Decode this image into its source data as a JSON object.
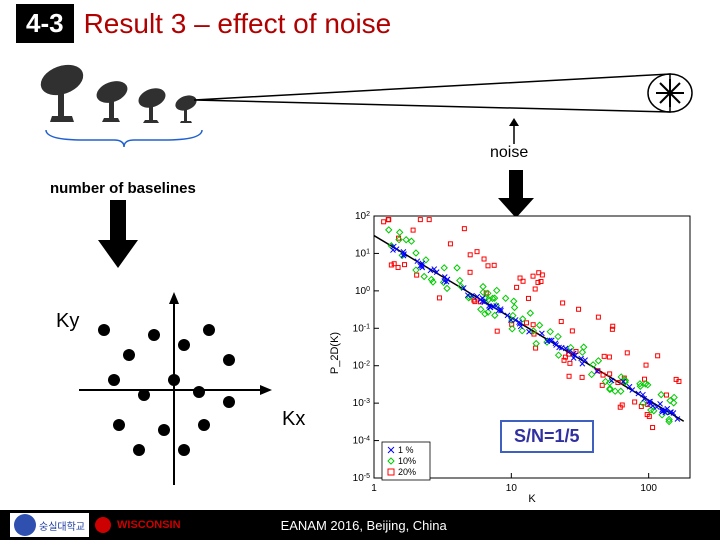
{
  "header": {
    "badge": "4-3",
    "title": "Result 3 – effect of noise"
  },
  "labels": {
    "noise": "noise",
    "baselines": "number of baselines",
    "ky": "Ky",
    "kx": "Kx",
    "sn": "S/N=1/5"
  },
  "chart": {
    "type": "scatter-log",
    "ylabel": "P_2D(K)",
    "xlabel": "K",
    "xlim": [
      1,
      200
    ],
    "ylim": [
      1e-05,
      100.0
    ],
    "xticks": [
      1,
      10,
      100
    ],
    "yticks_exp": [
      -5,
      -4,
      -3,
      -2,
      -1,
      0,
      1,
      2
    ],
    "legend": [
      {
        "label": "1 %",
        "marker": "x",
        "color": "#0000ff"
      },
      {
        "label": "10%",
        "marker": "diamond",
        "color": "#00cc00"
      },
      {
        "label": "20%",
        "marker": "square",
        "color": "#ff0000"
      }
    ],
    "line": {
      "color": "#000000",
      "width": 1.5
    },
    "colors": {
      "bg": "#ffffff",
      "axis": "#000000",
      "text": "#000000"
    },
    "fontsize": {
      "label": 11,
      "tick": 10,
      "legend": 10
    }
  },
  "kspace": {
    "type": "scatter",
    "points": [
      [
        -0.7,
        0.6
      ],
      [
        -0.45,
        0.35
      ],
      [
        -0.2,
        0.55
      ],
      [
        0.1,
        0.45
      ],
      [
        0.35,
        0.6
      ],
      [
        0.55,
        0.3
      ],
      [
        -0.6,
        0.1
      ],
      [
        -0.3,
        -0.05
      ],
      [
        0.0,
        0.1
      ],
      [
        0.25,
        -0.02
      ],
      [
        -0.55,
        -0.35
      ],
      [
        -0.1,
        -0.4
      ],
      [
        0.3,
        -0.35
      ],
      [
        0.55,
        -0.12
      ],
      [
        -0.35,
        -0.6
      ],
      [
        0.1,
        -0.6
      ]
    ],
    "marker_color": "#000000",
    "marker_radius": 6,
    "axis_color": "#000000"
  },
  "footer": {
    "conference": "EANAM 2016, Beijing, China",
    "wisconsin": "WISCONSIN",
    "uni": "숭실대학교"
  },
  "style": {
    "badge_bg": "#000000",
    "badge_fg": "#ffffff",
    "title_color": "#b00000",
    "sn_border": "#4060c0",
    "sn_text": "#3030a0",
    "footer_bg": "#000000",
    "footer_fg": "#ffffff"
  }
}
